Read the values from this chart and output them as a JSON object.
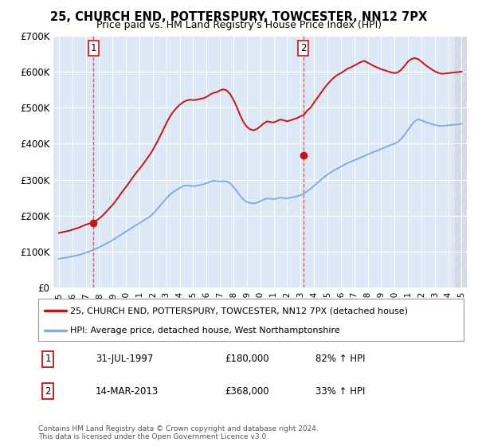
{
  "title_line1": "25, CHURCH END, POTTERSPURY, TOWCESTER, NN12 7PX",
  "title_line2": "Price paid vs. HM Land Registry's House Price Index (HPI)",
  "plot_bg_color": "#dce8f5",
  "red_line_color": "#cc1111",
  "blue_line_color": "#88aadd",
  "marker_color": "#cc1111",
  "transaction1": {
    "date_x": 1997.58,
    "price": 180000,
    "label": "1"
  },
  "transaction2": {
    "date_x": 2013.2,
    "price": 368000,
    "label": "2"
  },
  "xlim": [
    1994.6,
    2025.4
  ],
  "ylim": [
    0,
    700000
  ],
  "yticks": [
    0,
    100000,
    200000,
    300000,
    400000,
    500000,
    600000,
    700000
  ],
  "ytick_labels": [
    "£0",
    "£100K",
    "£200K",
    "£300K",
    "£400K",
    "£500K",
    "£600K",
    "£700K"
  ],
  "xticks": [
    1995,
    1996,
    1997,
    1998,
    1999,
    2000,
    2001,
    2002,
    2003,
    2004,
    2005,
    2006,
    2007,
    2008,
    2009,
    2010,
    2011,
    2012,
    2013,
    2014,
    2015,
    2016,
    2017,
    2018,
    2019,
    2020,
    2021,
    2022,
    2023,
    2024,
    2025
  ],
  "legend_label_red": "25, CHURCH END, POTTERSPURY, TOWCESTER, NN12 7PX (detached house)",
  "legend_label_blue": "HPI: Average price, detached house, West Northamptonshire",
  "note1_label": "1",
  "note1_date": "31-JUL-1997",
  "note1_price": "£180,000",
  "note1_hpi": "82% ↑ HPI",
  "note2_label": "2",
  "note2_date": "14-MAR-2013",
  "note2_price": "£368,000",
  "note2_hpi": "33% ↑ HPI",
  "copyright_text": "Contains HM Land Registry data © Crown copyright and database right 2024.\nThis data is licensed under the Open Government Licence v3.0.",
  "hpi_data": {
    "years": [
      1995.0,
      1995.25,
      1995.5,
      1995.75,
      1996.0,
      1996.25,
      1996.5,
      1996.75,
      1997.0,
      1997.25,
      1997.5,
      1997.75,
      1998.0,
      1998.25,
      1998.5,
      1998.75,
      1999.0,
      1999.25,
      1999.5,
      1999.75,
      2000.0,
      2000.25,
      2000.5,
      2000.75,
      2001.0,
      2001.25,
      2001.5,
      2001.75,
      2002.0,
      2002.25,
      2002.5,
      2002.75,
      2003.0,
      2003.25,
      2003.5,
      2003.75,
      2004.0,
      2004.25,
      2004.5,
      2004.75,
      2005.0,
      2005.25,
      2005.5,
      2005.75,
      2006.0,
      2006.25,
      2006.5,
      2006.75,
      2007.0,
      2007.25,
      2007.5,
      2007.75,
      2008.0,
      2008.25,
      2008.5,
      2008.75,
      2009.0,
      2009.25,
      2009.5,
      2009.75,
      2010.0,
      2010.25,
      2010.5,
      2010.75,
      2011.0,
      2011.25,
      2011.5,
      2011.75,
      2012.0,
      2012.25,
      2012.5,
      2012.75,
      2013.0,
      2013.25,
      2013.5,
      2013.75,
      2014.0,
      2014.25,
      2014.5,
      2014.75,
      2015.0,
      2015.25,
      2015.5,
      2015.75,
      2016.0,
      2016.25,
      2016.5,
      2016.75,
      2017.0,
      2017.25,
      2017.5,
      2017.75,
      2018.0,
      2018.25,
      2018.5,
      2018.75,
      2019.0,
      2019.25,
      2019.5,
      2019.75,
      2020.0,
      2020.25,
      2020.5,
      2020.75,
      2021.0,
      2021.25,
      2021.5,
      2021.75,
      2022.0,
      2022.25,
      2022.5,
      2022.75,
      2023.0,
      2023.25,
      2023.5,
      2023.75,
      2024.0,
      2024.25,
      2024.5,
      2024.75,
      2025.0
    ],
    "values": [
      80000,
      82000,
      83000,
      85000,
      87000,
      89000,
      91000,
      94000,
      97000,
      100000,
      104000,
      108000,
      112000,
      117000,
      122000,
      127000,
      132000,
      138000,
      144000,
      150000,
      156000,
      162000,
      168000,
      174000,
      179000,
      185000,
      191000,
      197000,
      205000,
      215000,
      226000,
      237000,
      248000,
      258000,
      265000,
      271000,
      277000,
      282000,
      284000,
      283000,
      282000,
      283000,
      285000,
      287000,
      290000,
      294000,
      297000,
      296000,
      295000,
      296000,
      295000,
      290000,
      280000,
      268000,
      255000,
      245000,
      238000,
      235000,
      234000,
      236000,
      240000,
      245000,
      248000,
      247000,
      246000,
      248000,
      250000,
      249000,
      248000,
      250000,
      252000,
      254000,
      257000,
      262000,
      268000,
      275000,
      283000,
      291000,
      299000,
      307000,
      314000,
      320000,
      326000,
      331000,
      336000,
      341000,
      346000,
      350000,
      354000,
      358000,
      362000,
      366000,
      370000,
      374000,
      378000,
      381000,
      385000,
      389000,
      393000,
      397000,
      400000,
      405000,
      413000,
      425000,
      438000,
      451000,
      462000,
      468000,
      465000,
      461000,
      458000,
      455000,
      452000,
      450000,
      449000,
      450000,
      451000,
      452000,
      453000,
      454000,
      455000
    ]
  },
  "red_data": {
    "years": [
      1995.0,
      1995.25,
      1995.5,
      1995.75,
      1996.0,
      1996.25,
      1996.5,
      1996.75,
      1997.0,
      1997.25,
      1997.5,
      1997.75,
      1998.0,
      1998.25,
      1998.5,
      1998.75,
      1999.0,
      1999.25,
      1999.5,
      1999.75,
      2000.0,
      2000.25,
      2000.5,
      2000.75,
      2001.0,
      2001.25,
      2001.5,
      2001.75,
      2002.0,
      2002.25,
      2002.5,
      2002.75,
      2003.0,
      2003.25,
      2003.5,
      2003.75,
      2004.0,
      2004.25,
      2004.5,
      2004.75,
      2005.0,
      2005.25,
      2005.5,
      2005.75,
      2006.0,
      2006.25,
      2006.5,
      2006.75,
      2007.0,
      2007.25,
      2007.5,
      2007.75,
      2008.0,
      2008.25,
      2008.5,
      2008.75,
      2009.0,
      2009.25,
      2009.5,
      2009.75,
      2010.0,
      2010.25,
      2010.5,
      2010.75,
      2011.0,
      2011.25,
      2011.5,
      2011.75,
      2012.0,
      2012.25,
      2012.5,
      2012.75,
      2013.0,
      2013.25,
      2013.5,
      2013.75,
      2014.0,
      2014.25,
      2014.5,
      2014.75,
      2015.0,
      2015.25,
      2015.5,
      2015.75,
      2016.0,
      2016.25,
      2016.5,
      2016.75,
      2017.0,
      2017.25,
      2017.5,
      2017.75,
      2018.0,
      2018.25,
      2018.5,
      2018.75,
      2019.0,
      2019.25,
      2019.5,
      2019.75,
      2020.0,
      2020.25,
      2020.5,
      2020.75,
      2021.0,
      2021.25,
      2021.5,
      2021.75,
      2022.0,
      2022.25,
      2022.5,
      2022.75,
      2023.0,
      2023.25,
      2023.5,
      2023.75,
      2024.0,
      2024.25,
      2024.5,
      2024.75,
      2025.0
    ],
    "values": [
      152000,
      154000,
      156000,
      158000,
      161000,
      164000,
      167000,
      171000,
      175000,
      178000,
      180000,
      185000,
      192000,
      200000,
      210000,
      220000,
      230000,
      242000,
      255000,
      268000,
      280000,
      293000,
      306000,
      319000,
      330000,
      342000,
      355000,
      368000,
      383000,
      400000,
      418000,
      437000,
      456000,
      474000,
      488000,
      499000,
      508000,
      515000,
      520000,
      522000,
      521000,
      522000,
      524000,
      526000,
      530000,
      536000,
      541000,
      543000,
      548000,
      551000,
      548000,
      538000,
      522000,
      502000,
      479000,
      460000,
      447000,
      440000,
      437000,
      441000,
      448000,
      456000,
      462000,
      460000,
      459000,
      463000,
      467000,
      465000,
      462000,
      465000,
      468000,
      471000,
      476000,
      480000,
      492000,
      500000,
      514000,
      527000,
      540000,
      553000,
      565000,
      575000,
      584000,
      591000,
      596000,
      602000,
      608000,
      612000,
      617000,
      622000,
      627000,
      630000,
      625000,
      620000,
      615000,
      611000,
      607000,
      604000,
      601000,
      598000,
      596000,
      598000,
      605000,
      616000,
      628000,
      635000,
      638000,
      635000,
      628000,
      620000,
      613000,
      607000,
      601000,
      597000,
      594000,
      595000,
      596000,
      597000,
      598000,
      599000,
      600000
    ]
  }
}
